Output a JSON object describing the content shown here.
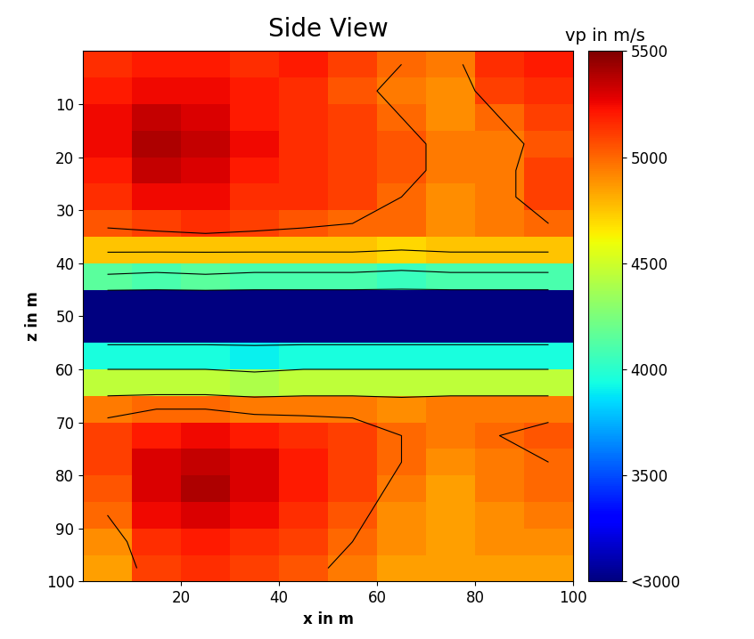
{
  "chart_data": {
    "type": "heatmap",
    "title": "Side View",
    "x_label": "x in m",
    "y_label": "z in m",
    "xlim": [
      0,
      100
    ],
    "ylim": [
      100,
      0
    ],
    "xticks": [
      20,
      40,
      60,
      80,
      100
    ],
    "yticks": [
      10,
      20,
      30,
      40,
      50,
      60,
      70,
      80,
      90,
      100
    ],
    "x_edges": [
      0,
      10,
      20,
      30,
      40,
      50,
      60,
      70,
      80,
      90,
      100
    ],
    "z_edges": [
      0,
      5,
      10,
      15,
      20,
      25,
      30,
      35,
      40,
      45,
      50,
      55,
      60,
      65,
      70,
      75,
      80,
      85,
      90,
      95,
      100
    ],
    "cells": [
      [
        5150,
        5200,
        5200,
        5150,
        5200,
        5100,
        5000,
        4950,
        5150,
        5200
      ],
      [
        5200,
        5250,
        5250,
        5200,
        5150,
        5050,
        4950,
        4900,
        5100,
        5150
      ],
      [
        5250,
        5350,
        5300,
        5200,
        5150,
        5100,
        5000,
        4900,
        5000,
        5100
      ],
      [
        5250,
        5400,
        5350,
        5250,
        5150,
        5100,
        5050,
        4950,
        4950,
        5050
      ],
      [
        5200,
        5350,
        5300,
        5200,
        5150,
        5100,
        5050,
        4950,
        4950,
        5100
      ],
      [
        5150,
        5250,
        5250,
        5150,
        5150,
        5100,
        5000,
        4900,
        4950,
        5100
      ],
      [
        5050,
        5100,
        5150,
        5100,
        5050,
        5000,
        5000,
        4900,
        4950,
        5000
      ],
      [
        4750,
        4750,
        4750,
        4750,
        4750,
        4750,
        4700,
        4750,
        4750,
        4750
      ],
      [
        4150,
        4100,
        4150,
        4100,
        4100,
        4100,
        4050,
        4100,
        4100,
        4100
      ],
      [
        2900,
        2900,
        2900,
        2900,
        2900,
        2900,
        2900,
        2900,
        2900,
        2900
      ],
      [
        2900,
        2900,
        2900,
        2900,
        2900,
        2900,
        2900,
        2900,
        2900,
        2900
      ],
      [
        3950,
        3950,
        3950,
        3900,
        3950,
        3950,
        3950,
        3950,
        3950,
        3950
      ],
      [
        4450,
        4450,
        4450,
        4400,
        4450,
        4450,
        4450,
        4450,
        4450,
        4450
      ],
      [
        4950,
        5000,
        5000,
        4950,
        4950,
        4950,
        4900,
        4950,
        4950,
        4950
      ],
      [
        5100,
        5200,
        5250,
        5200,
        5150,
        5100,
        5000,
        4950,
        5000,
        5050
      ],
      [
        5100,
        5300,
        5350,
        5300,
        5200,
        5100,
        5000,
        4900,
        4950,
        5000
      ],
      [
        5050,
        5300,
        5400,
        5300,
        5200,
        5100,
        4950,
        4850,
        4950,
        5000
      ],
      [
        5000,
        5250,
        5300,
        5250,
        5150,
        5050,
        4900,
        4850,
        4900,
        4950
      ],
      [
        4900,
        5150,
        5200,
        5150,
        5100,
        5000,
        4900,
        4850,
        4900,
        4900
      ],
      [
        4850,
        5100,
        5150,
        5100,
        5050,
        4950,
        4850,
        4850,
        4850,
        4850
      ]
    ],
    "contour_levels": [
      3500,
      4200,
      4700,
      5000
    ],
    "colorbar_label": "vp in m/s",
    "colorbar_range": [
      3000,
      5500
    ],
    "colorbar_ticks": [
      {
        "value": 3000,
        "label": "<3000"
      },
      3500,
      4000,
      4500,
      5000,
      5500
    ]
  }
}
